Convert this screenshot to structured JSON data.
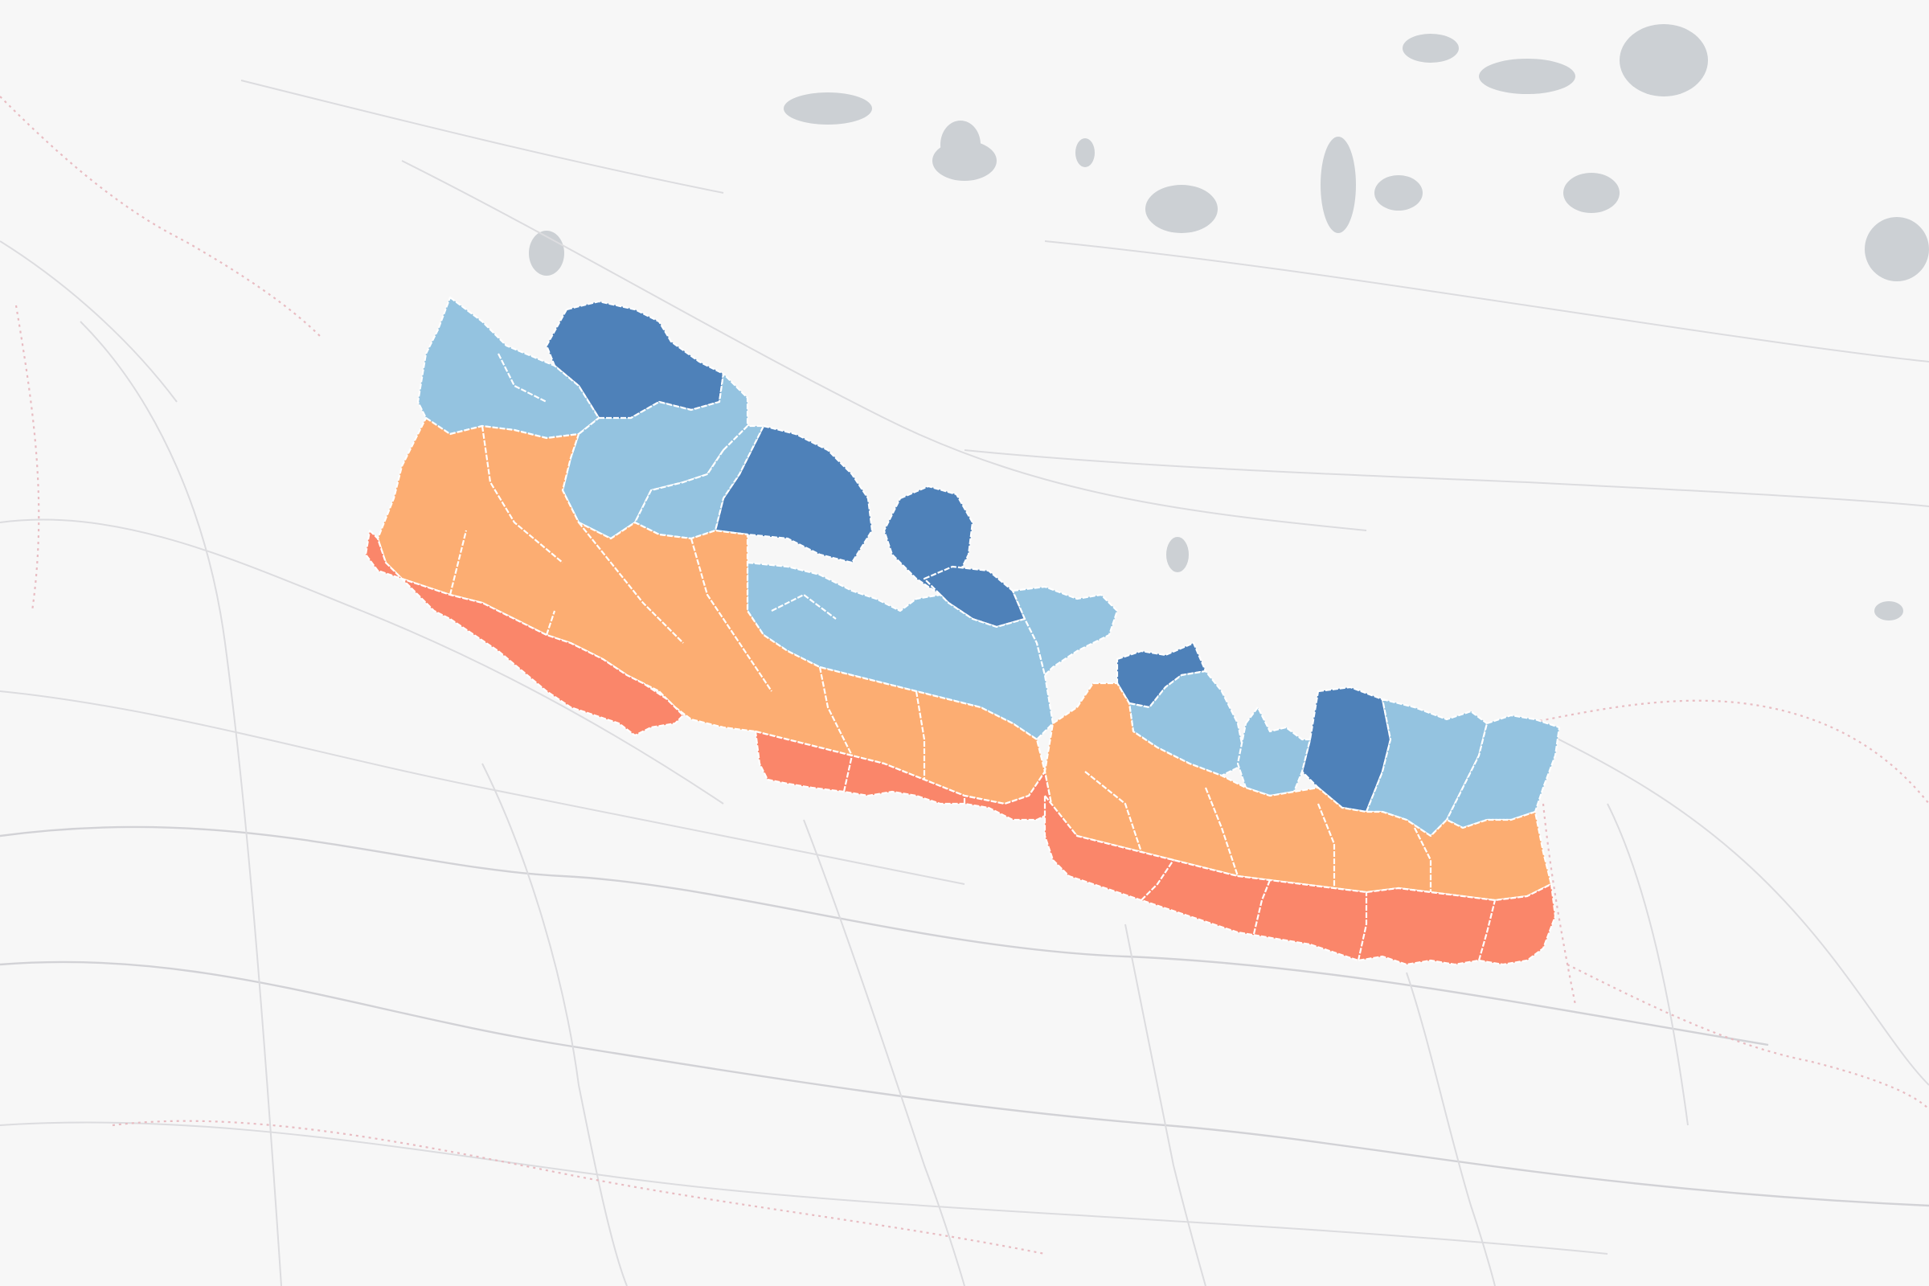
{
  "map": {
    "basemap_colors": {
      "background": "#f7f7f7",
      "water": "#ccd0d4",
      "roads": "#dcdcdf",
      "international_border": "#e8bcc2",
      "district_outline": "#ffffff"
    },
    "choropleth": {
      "classes": [
        {
          "id": "class-1",
          "color": "#4e81b9"
        },
        {
          "id": "class-2",
          "color": "#94c3e0"
        },
        {
          "id": "class-3",
          "color": "#fcad72"
        },
        {
          "id": "class-4",
          "color": "#fa866a"
        }
      ]
    }
  }
}
